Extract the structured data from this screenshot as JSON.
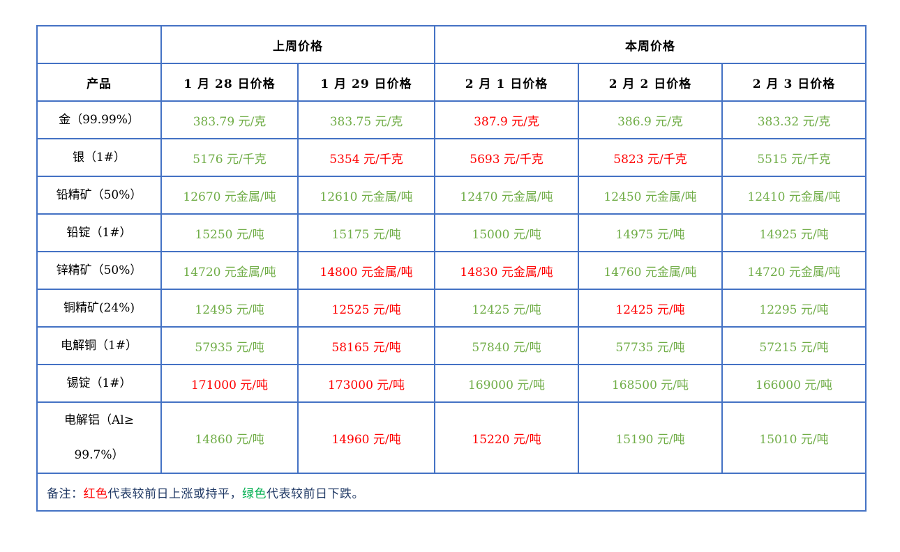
{
  "colors": {
    "border": "#4472C4",
    "price_up_red": "#FF0000",
    "price_down_green": "#70AD47",
    "note_red": "#FF0000",
    "note_green": "#00B050",
    "note_text": "#1F3864",
    "header_text": "#000000"
  },
  "table": {
    "group_headers": [
      {
        "label": "上周价格",
        "colspan": 2
      },
      {
        "label": "本周价格",
        "colspan": 3
      }
    ],
    "product_header": "产品",
    "date_headers": [
      "1 月 28 日价格",
      "1 月 29 日价格",
      "2 月 1 日价格",
      "2 月 2 日价格",
      "2 月 3 日价格"
    ],
    "rows": [
      {
        "product": "金（99.99%）",
        "prices": [
          {
            "text": "383.79 元/克",
            "trend": "down"
          },
          {
            "text": "383.75 元/克",
            "trend": "down"
          },
          {
            "text": "387.9 元/克",
            "trend": "up"
          },
          {
            "text": "386.9 元/克",
            "trend": "down"
          },
          {
            "text": "383.32 元/克",
            "trend": "down"
          }
        ]
      },
      {
        "product": "银（1#）",
        "prices": [
          {
            "text": "5176 元/千克",
            "trend": "down"
          },
          {
            "text": "5354 元/千克",
            "trend": "up"
          },
          {
            "text": "5693 元/千克",
            "trend": "up"
          },
          {
            "text": "5823 元/千克",
            "trend": "up"
          },
          {
            "text": "5515 元/千克",
            "trend": "down"
          }
        ]
      },
      {
        "product": "铅精矿（50%）",
        "prices": [
          {
            "text": "12670 元金属/吨",
            "trend": "down"
          },
          {
            "text": "12610 元金属/吨",
            "trend": "down"
          },
          {
            "text": "12470 元金属/吨",
            "trend": "down"
          },
          {
            "text": "12450 元金属/吨",
            "trend": "down"
          },
          {
            "text": "12410 元金属/吨",
            "trend": "down"
          }
        ]
      },
      {
        "product": "铅锭（1#）",
        "prices": [
          {
            "text": "15250 元/吨",
            "trend": "down"
          },
          {
            "text": "15175 元/吨",
            "trend": "down"
          },
          {
            "text": "15000 元/吨",
            "trend": "down"
          },
          {
            "text": "14975 元/吨",
            "trend": "down"
          },
          {
            "text": "14925 元/吨",
            "trend": "down"
          }
        ]
      },
      {
        "product": "锌精矿（50%）",
        "prices": [
          {
            "text": "14720 元金属/吨",
            "trend": "down"
          },
          {
            "text": "14800 元金属/吨",
            "trend": "up"
          },
          {
            "text": "14830 元金属/吨",
            "trend": "up"
          },
          {
            "text": "14760 元金属/吨",
            "trend": "down"
          },
          {
            "text": "14720 元金属/吨",
            "trend": "down"
          }
        ]
      },
      {
        "product": "铜精矿(24%)",
        "prices": [
          {
            "text": "12495 元/吨",
            "trend": "down"
          },
          {
            "text": "12525 元/吨",
            "trend": "up"
          },
          {
            "text": "12425 元/吨",
            "trend": "down"
          },
          {
            "text": "12425 元/吨",
            "trend": "up"
          },
          {
            "text": "12295 元/吨",
            "trend": "down"
          }
        ]
      },
      {
        "product": "电解铜（1#）",
        "prices": [
          {
            "text": "57935 元/吨",
            "trend": "down"
          },
          {
            "text": "58165 元/吨",
            "trend": "up"
          },
          {
            "text": "57840 元/吨",
            "trend": "down"
          },
          {
            "text": "57735 元/吨",
            "trend": "down"
          },
          {
            "text": "57215 元/吨",
            "trend": "down"
          }
        ]
      },
      {
        "product": "锡锭（1#）",
        "prices": [
          {
            "text": "171000 元/吨",
            "trend": "up"
          },
          {
            "text": "173000 元/吨",
            "trend": "up"
          },
          {
            "text": "169000 元/吨",
            "trend": "down"
          },
          {
            "text": "168500 元/吨",
            "trend": "down"
          },
          {
            "text": "166000 元/吨",
            "trend": "down"
          }
        ]
      },
      {
        "product": "电解铝（Al≥\n99.7%）",
        "prices": [
          {
            "text": "14860 元/吨",
            "trend": "down"
          },
          {
            "text": "14960 元/吨",
            "trend": "up"
          },
          {
            "text": "15220 元/吨",
            "trend": "up"
          },
          {
            "text": "15190 元/吨",
            "trend": "down"
          },
          {
            "text": "15010 元/吨",
            "trend": "down"
          }
        ]
      }
    ]
  },
  "note": {
    "segments": [
      {
        "text": "备注：",
        "color": "default"
      },
      {
        "text": "红色",
        "color": "red"
      },
      {
        "text": "代表较前日上涨或持平，",
        "color": "default"
      },
      {
        "text": "绿色",
        "color": "green"
      },
      {
        "text": "代表较前日下跌。",
        "color": "default"
      }
    ]
  }
}
